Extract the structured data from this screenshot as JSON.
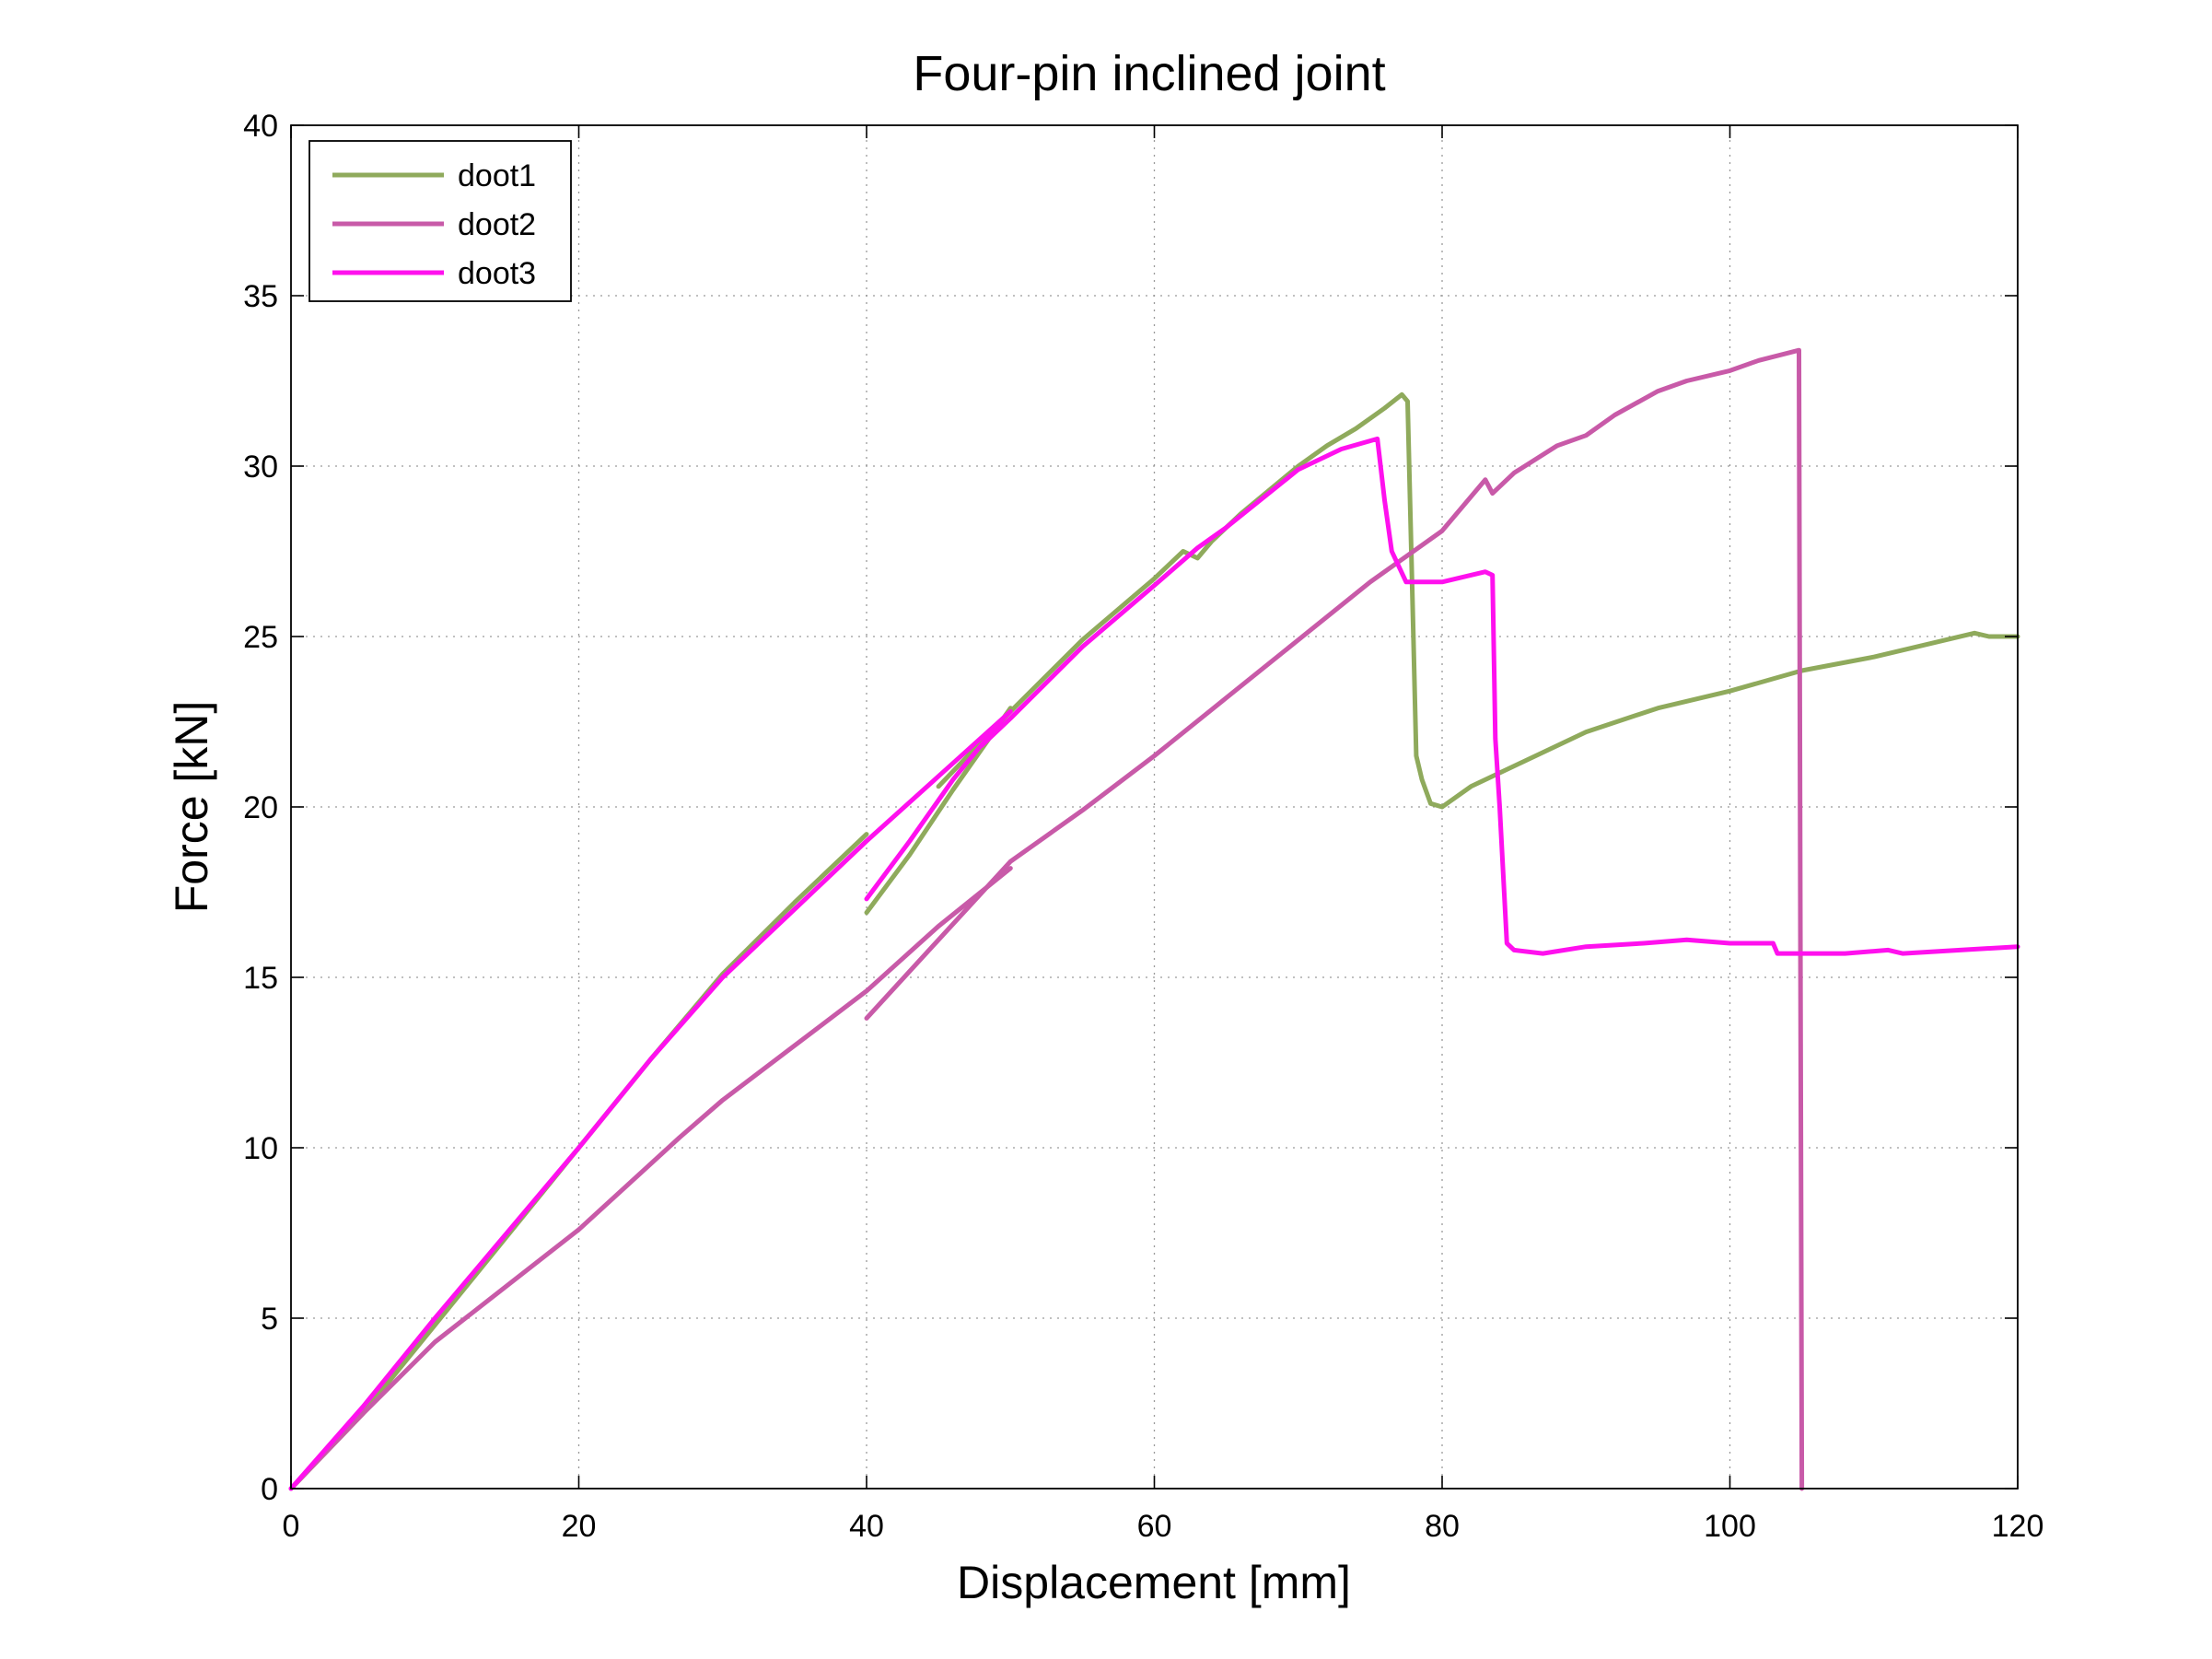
{
  "chart_data": {
    "type": "line",
    "title": "Four-pin inclined joint",
    "xlabel": "Displacement [mm]",
    "ylabel": "Force [kN]",
    "xlim": [
      0,
      120
    ],
    "ylim": [
      0,
      40
    ],
    "xticks": [
      0,
      20,
      40,
      60,
      80,
      100,
      120
    ],
    "yticks": [
      0,
      5,
      10,
      15,
      20,
      25,
      30,
      35,
      40
    ],
    "grid": true,
    "legend_position": "top-left",
    "series": [
      {
        "name": "doot1",
        "color": "#8faa5c",
        "segments": [
          [
            [
              0,
              0
            ],
            [
              5,
              2.2
            ],
            [
              10,
              4.8
            ],
            [
              20,
              10
            ],
            [
              25,
              12.6
            ],
            [
              30,
              15.1
            ],
            [
              35,
              17.2
            ],
            [
              40,
              19.2
            ]
          ],
          [
            [
              40,
              16.9
            ],
            [
              43,
              18.6
            ],
            [
              46,
              20.5
            ],
            [
              50,
              22.9
            ]
          ],
          [
            [
              45,
              20.6
            ],
            [
              50,
              22.8
            ],
            [
              55,
              24.9
            ],
            [
              60,
              26.7
            ],
            [
              62,
              27.5
            ],
            [
              63,
              27.3
            ],
            [
              64,
              27.8
            ],
            [
              66,
              28.6
            ],
            [
              68,
              29.3
            ],
            [
              70,
              30.0
            ],
            [
              72,
              30.6
            ],
            [
              74,
              31.1
            ],
            [
              76,
              31.7
            ],
            [
              77.2,
              32.1
            ],
            [
              77.6,
              31.9
            ],
            [
              77.8,
              28.5
            ],
            [
              78,
              25.0
            ],
            [
              78.2,
              21.5
            ],
            [
              78.6,
              20.8
            ],
            [
              79.2,
              20.1
            ],
            [
              80,
              20.0
            ],
            [
              82,
              20.6
            ],
            [
              85,
              21.2
            ],
            [
              90,
              22.2
            ],
            [
              95,
              22.9
            ],
            [
              100,
              23.4
            ],
            [
              105,
              24.0
            ],
            [
              110,
              24.4
            ],
            [
              115,
              24.9
            ],
            [
              117,
              25.1
            ],
            [
              118,
              25.0
            ],
            [
              120,
              25.0
            ]
          ]
        ]
      },
      {
        "name": "doot2",
        "color": "#c85aa8",
        "segments": [
          [
            [
              0,
              0
            ],
            [
              5,
              2.2
            ],
            [
              10,
              4.3
            ],
            [
              20,
              7.6
            ],
            [
              27,
              10.3
            ],
            [
              30,
              11.4
            ],
            [
              35,
              13.0
            ],
            [
              40,
              14.6
            ],
            [
              45,
              16.5
            ],
            [
              50,
              18.2
            ]
          ],
          [
            [
              40,
              13.8
            ],
            [
              45,
              16.1
            ],
            [
              50,
              18.4
            ],
            [
              55,
              19.9
            ],
            [
              60,
              21.5
            ],
            [
              65,
              23.2
            ],
            [
              70,
              24.9
            ],
            [
              75,
              26.6
            ],
            [
              80,
              28.1
            ],
            [
              83,
              29.6
            ],
            [
              83.5,
              29.2
            ],
            [
              85,
              29.8
            ],
            [
              88,
              30.6
            ],
            [
              90,
              30.9
            ],
            [
              92,
              31.5
            ],
            [
              95,
              32.2
            ],
            [
              97,
              32.5
            ],
            [
              100,
              32.8
            ],
            [
              102,
              33.1
            ],
            [
              104.8,
              33.4
            ],
            [
              104.9,
              15.5
            ],
            [
              105,
              0
            ]
          ]
        ]
      },
      {
        "name": "doot3",
        "color": "#ff10ee",
        "segments": [
          [
            [
              0,
              0
            ],
            [
              5,
              2.4
            ],
            [
              10,
              5.0
            ],
            [
              20,
              10.0
            ],
            [
              25,
              12.6
            ],
            [
              30,
              15.0
            ],
            [
              35,
              17.0
            ],
            [
              40,
              19.0
            ],
            [
              45,
              20.9
            ],
            [
              50,
              22.8
            ]
          ],
          [
            [
              40,
              17.3
            ],
            [
              43,
              19.0
            ],
            [
              46,
              20.8
            ],
            [
              49.5,
              22.6
            ]
          ],
          [
            [
              48,
              21.8
            ],
            [
              50,
              22.6
            ],
            [
              55,
              24.7
            ],
            [
              60,
              26.5
            ],
            [
              63,
              27.6
            ],
            [
              65,
              28.2
            ],
            [
              70,
              29.9
            ],
            [
              73,
              30.5
            ],
            [
              75.5,
              30.8
            ],
            [
              76,
              29.0
            ],
            [
              76.5,
              27.5
            ],
            [
              77.5,
              26.6
            ],
            [
              80,
              26.6
            ],
            [
              83,
              26.9
            ],
            [
              83.5,
              26.8
            ],
            [
              83.7,
              22.0
            ],
            [
              84,
              20.0
            ],
            [
              84.5,
              16.0
            ],
            [
              85,
              15.8
            ],
            [
              87,
              15.7
            ],
            [
              90,
              15.9
            ],
            [
              94,
              16.0
            ],
            [
              97,
              16.1
            ],
            [
              100,
              16.0
            ],
            [
              103,
              16.0
            ],
            [
              103.3,
              15.7
            ],
            [
              108,
              15.7
            ],
            [
              111,
              15.8
            ],
            [
              112,
              15.7
            ],
            [
              116,
              15.8
            ],
            [
              120,
              15.9
            ]
          ]
        ]
      }
    ]
  }
}
